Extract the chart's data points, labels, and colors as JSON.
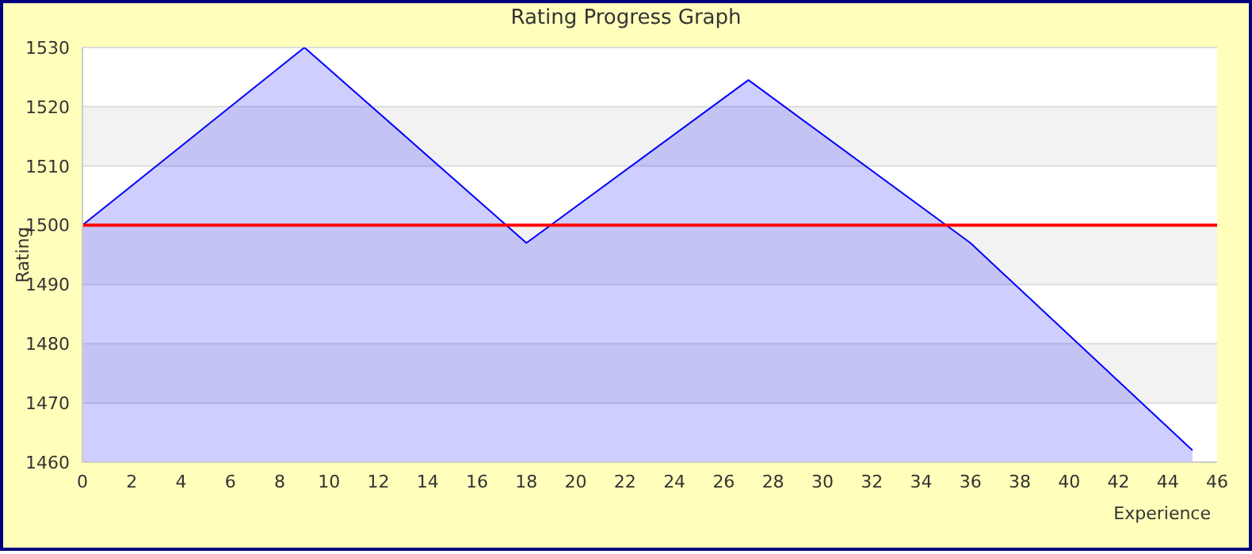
{
  "chart_data": {
    "type": "area",
    "title": "Rating Progress Graph",
    "xlabel": "Experience",
    "ylabel": "Rating",
    "x": [
      0,
      9,
      18,
      27,
      36,
      45
    ],
    "series": [
      {
        "color": "#0000ff",
        "values": [
          1500,
          1530,
          1497,
          1524.5,
          1497,
          1462
        ]
      }
    ],
    "xlim": [
      0,
      46
    ],
    "xticks": [
      0,
      2,
      4,
      6,
      8,
      10,
      12,
      14,
      16,
      18,
      20,
      22,
      24,
      26,
      28,
      30,
      32,
      34,
      36,
      38,
      40,
      42,
      44,
      46
    ],
    "ylim": [
      1460,
      1530
    ],
    "yticks": [
      1460,
      1470,
      1480,
      1490,
      1500,
      1510,
      1520,
      1530
    ],
    "grid": "y",
    "marker": "none",
    "line_style": "solid",
    "ref_lines": [
      {
        "axis": "y",
        "value": 1500,
        "color": "#ff0000"
      }
    ]
  }
}
